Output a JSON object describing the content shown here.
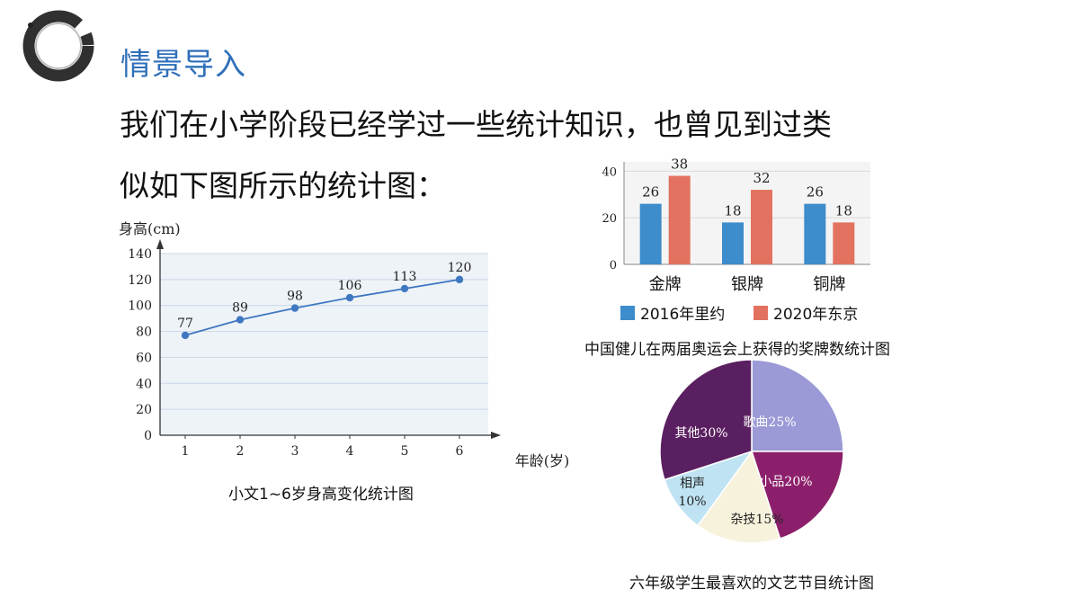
{
  "slide": {
    "title": "情景导入",
    "intro_line_1": "我们在小学阶段已经学过一些统计知识，也曾见到过类",
    "intro_line_2": "似如下图所示的统计图："
  },
  "chart_data": [
    {
      "type": "line",
      "title": "小文1~6岁身高变化统计图",
      "ylabel": "身高(cm)",
      "xlabel": "年龄(岁)",
      "x": [
        1,
        2,
        3,
        4,
        5,
        6
      ],
      "values": [
        77,
        89,
        98,
        106,
        113,
        120
      ],
      "data_labels": [
        "77",
        "89",
        "98",
        "106",
        "113",
        "120"
      ],
      "xticks": [
        "1",
        "2",
        "3",
        "4",
        "5",
        "6"
      ],
      "yticks": [
        "0",
        "20",
        "40",
        "60",
        "80",
        "100",
        "120",
        "140"
      ],
      "ylim": [
        0,
        140
      ],
      "grid": true,
      "color": "#3f78c0"
    },
    {
      "type": "bar",
      "title": "中国健儿在两届奥运会上获得的奖牌数统计图",
      "categories": [
        "金牌",
        "银牌",
        "铜牌"
      ],
      "yticks": [
        "0",
        "20",
        "40"
      ],
      "ylim": [
        0,
        44
      ],
      "grid": true,
      "legend_position": "bottom",
      "series": [
        {
          "name": "2016年里约",
          "values": [
            26,
            18,
            26
          ],
          "labels": [
            "26",
            "18",
            "26"
          ],
          "color": "#3d8ccb"
        },
        {
          "name": "2020年东京",
          "values": [
            38,
            32,
            18
          ],
          "labels": [
            "38",
            "32",
            "18"
          ],
          "color": "#e2725f"
        }
      ]
    },
    {
      "type": "pie",
      "title": "六年级学生最喜欢的文艺节目统计图",
      "slices": [
        {
          "label": "歌曲25%",
          "value": 25,
          "color": "#9b9ad6"
        },
        {
          "label": "小品20%",
          "value": 20,
          "color": "#8c1f6b"
        },
        {
          "label": "杂技15%",
          "value": 15,
          "color": "#f7f2dc"
        },
        {
          "label": "相声",
          "label2": "10%",
          "value": 10,
          "color": "#bfe3f3"
        },
        {
          "label": "其他30%",
          "value": 30,
          "color": "#5a1f60"
        }
      ]
    }
  ]
}
